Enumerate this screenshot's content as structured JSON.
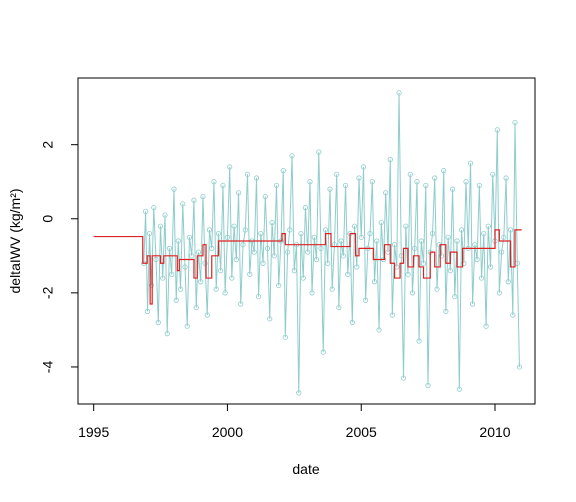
{
  "chart_data": {
    "type": "line",
    "title": "",
    "xlabel": "date",
    "ylabel": "deltaIWV (kg/m²)",
    "xlim": [
      "1994-06-01",
      "2011-07-01"
    ],
    "ylim": [
      -5.0,
      3.8
    ],
    "x_ticks": [
      {
        "value": "1995-01-01",
        "label": "1995"
      },
      {
        "value": "2000-01-01",
        "label": "2000"
      },
      {
        "value": "2005-01-01",
        "label": "2005"
      },
      {
        "value": "2010-01-01",
        "label": "2010"
      }
    ],
    "y_ticks": [
      {
        "value": -4,
        "label": "-4"
      },
      {
        "value": -2,
        "label": "-2"
      },
      {
        "value": 0,
        "label": "0"
      },
      {
        "value": 2,
        "label": "2"
      }
    ],
    "colors": {
      "raw_series": "#8fcccc",
      "segment_series": "#dd2222",
      "axes": "#000000"
    },
    "series": [
      {
        "type": "line+points",
        "style": "raw",
        "x": [
          "1996-11-15",
          "1996-12-10",
          "1997-01-05",
          "1997-02-01",
          "1997-03-01",
          "1997-04-01",
          "1997-05-01",
          "1997-06-01",
          "1997-07-01",
          "1997-08-01",
          "1997-09-01",
          "1997-10-01",
          "1997-11-01",
          "1997-12-01",
          "1998-01-01",
          "1998-02-01",
          "1998-03-01",
          "1998-04-01",
          "1998-05-01",
          "1998-06-01",
          "1998-07-01",
          "1998-08-01",
          "1998-09-01",
          "1998-10-01",
          "1998-11-01",
          "1998-12-01",
          "1999-01-01",
          "1999-02-01",
          "1999-03-01",
          "1999-04-01",
          "1999-05-01",
          "1999-06-01",
          "1999-07-01",
          "1999-08-01",
          "1999-09-01",
          "1999-10-01",
          "1999-11-01",
          "1999-12-01",
          "2000-01-01",
          "2000-02-01",
          "2000-03-01",
          "2000-04-01",
          "2000-05-01",
          "2000-06-01",
          "2000-07-01",
          "2000-08-01",
          "2000-09-01",
          "2000-10-01",
          "2000-11-01",
          "2000-12-01",
          "2001-01-01",
          "2001-02-01",
          "2001-03-01",
          "2001-04-01",
          "2001-05-01",
          "2001-06-01",
          "2001-07-01",
          "2001-08-01",
          "2001-09-01",
          "2001-10-01",
          "2001-11-01",
          "2001-12-01",
          "2002-01-01",
          "2002-02-01",
          "2002-03-01",
          "2002-04-01",
          "2002-05-01",
          "2002-06-01",
          "2002-07-01",
          "2002-08-01",
          "2002-09-01",
          "2002-10-01",
          "2002-11-01",
          "2002-12-01",
          "2003-01-01",
          "2003-02-01",
          "2003-03-01",
          "2003-04-01",
          "2003-05-01",
          "2003-06-01",
          "2003-07-01",
          "2003-08-01",
          "2003-09-01",
          "2003-10-01",
          "2003-11-01",
          "2003-12-01",
          "2004-01-01",
          "2004-02-01",
          "2004-03-01",
          "2004-04-01",
          "2004-05-01",
          "2004-06-01",
          "2004-07-01",
          "2004-08-01",
          "2004-09-01",
          "2004-10-01",
          "2004-11-01",
          "2004-12-01",
          "2005-01-01",
          "2005-02-01",
          "2005-03-01",
          "2005-04-01",
          "2005-05-01",
          "2005-06-01",
          "2005-07-01",
          "2005-08-01",
          "2005-09-01",
          "2005-10-01",
          "2005-11-01",
          "2005-12-01",
          "2006-01-01",
          "2006-02-01",
          "2006-03-01",
          "2006-04-01",
          "2006-05-01",
          "2006-06-01",
          "2006-07-01",
          "2006-08-01",
          "2006-09-01",
          "2006-10-01",
          "2006-11-01",
          "2006-12-01",
          "2007-01-01",
          "2007-02-01",
          "2007-03-01",
          "2007-04-01",
          "2007-05-01",
          "2007-06-01",
          "2007-07-01",
          "2007-08-01",
          "2007-09-01",
          "2007-10-01",
          "2007-11-01",
          "2007-12-01",
          "2008-01-01",
          "2008-02-01",
          "2008-03-01",
          "2008-04-01",
          "2008-05-01",
          "2008-06-01",
          "2008-07-01",
          "2008-08-01",
          "2008-09-01",
          "2008-10-01",
          "2008-11-01",
          "2008-12-01",
          "2009-01-01",
          "2009-02-01",
          "2009-03-01",
          "2009-04-01",
          "2009-05-01",
          "2009-06-01",
          "2009-07-01",
          "2009-08-01",
          "2009-09-01",
          "2009-10-01",
          "2009-11-01",
          "2009-12-01",
          "2010-01-01",
          "2010-02-01",
          "2010-03-01",
          "2010-04-01",
          "2010-05-01",
          "2010-06-01",
          "2010-07-01",
          "2010-08-01",
          "2010-09-01",
          "2010-10-01",
          "2010-11-01",
          "2010-12-01"
        ],
        "y": [
          -1.2,
          0.2,
          -2.5,
          -0.4,
          -1.8,
          0.3,
          -1.1,
          -2.8,
          -0.2,
          -1.6,
          0.1,
          -3.1,
          -0.8,
          -1.5,
          0.8,
          -2.2,
          -0.6,
          -1.9,
          0.4,
          -1.3,
          -2.9,
          -0.5,
          -1.0,
          0.5,
          -2.4,
          -0.9,
          -1.7,
          0.6,
          -1.2,
          -2.6,
          -0.3,
          -0.8,
          1.0,
          -1.9,
          -0.4,
          -1.4,
          0.9,
          -2.0,
          -0.5,
          1.4,
          -1.6,
          -0.2,
          -1.1,
          0.7,
          -2.3,
          -0.7,
          -0.3,
          1.2,
          -1.5,
          -0.6,
          -0.9,
          1.1,
          -2.1,
          -0.4,
          -1.2,
          0.6,
          -0.8,
          -2.7,
          -0.1,
          -1.0,
          0.9,
          -1.8,
          -0.6,
          1.3,
          -3.2,
          -0.9,
          -0.3,
          1.7,
          -1.4,
          -0.7,
          -4.7,
          -0.4,
          -1.6,
          0.3,
          -0.9,
          1.0,
          -2.0,
          -0.5,
          -1.1,
          1.8,
          -0.8,
          -3.6,
          -0.3,
          -1.2,
          0.8,
          -1.9,
          -0.7,
          1.2,
          -2.4,
          -0.6,
          -1.0,
          0.9,
          -1.5,
          -0.4,
          -2.8,
          -0.2,
          -1.3,
          1.1,
          -0.5,
          1.4,
          -2.2,
          -0.8,
          -0.4,
          1.0,
          -1.7,
          -0.6,
          -3.0,
          -0.1,
          -1.1,
          0.7,
          -0.9,
          1.6,
          -2.6,
          -0.7,
          -1.3,
          3.4,
          -1.0,
          -4.3,
          -0.2,
          -1.5,
          1.2,
          -2.0,
          -0.8,
          1.0,
          -3.3,
          -0.6,
          -1.2,
          0.9,
          -4.5,
          -0.9,
          -0.4,
          1.1,
          -1.9,
          -0.7,
          -1.0,
          1.3,
          -2.5,
          -0.5,
          -1.4,
          0.8,
          -2.1,
          -0.6,
          -4.6,
          -0.3,
          -1.2,
          1.0,
          -0.8,
          1.5,
          -2.3,
          -0.7,
          -1.1,
          0.9,
          -1.6,
          -0.4,
          -2.9,
          -0.2,
          -1.3,
          1.2,
          -0.6,
          2.4,
          -2.0,
          -0.9,
          -0.5,
          1.1,
          -1.7,
          -0.3,
          -2.6,
          2.6,
          -1.2,
          -4.0
        ]
      },
      {
        "type": "step",
        "style": "segments",
        "x": [
          "1995-01-01",
          "1996-11-01",
          "1997-01-01",
          "1997-02-10",
          "1997-03-10",
          "1997-04-15",
          "1997-06-01",
          "1997-07-01",
          "1997-08-15",
          "1997-10-01",
          "1998-01-01",
          "1998-02-15",
          "1998-03-15",
          "1998-06-01",
          "1998-10-01",
          "1998-11-15",
          "1999-01-01",
          "1999-02-01",
          "1999-03-15",
          "1999-06-01",
          "1999-09-01",
          "1999-11-15",
          "2000-01-01",
          "2000-03-01",
          "2000-07-01",
          "2001-01-01",
          "2001-07-01",
          "2001-12-01",
          "2002-01-15",
          "2002-03-01",
          "2002-05-01",
          "2002-09-01",
          "2002-12-15",
          "2003-03-01",
          "2003-06-01",
          "2003-09-01",
          "2003-11-15",
          "2004-02-01",
          "2004-05-01",
          "2004-08-01",
          "2004-10-15",
          "2004-12-01",
          "2005-02-01",
          "2005-04-01",
          "2005-06-15",
          "2005-09-01",
          "2005-11-15",
          "2006-02-01",
          "2006-04-01",
          "2006-06-15",
          "2006-08-01",
          "2006-10-01",
          "2006-12-15",
          "2007-03-01",
          "2007-05-01",
          "2007-08-01",
          "2007-10-01",
          "2007-12-15",
          "2008-03-01",
          "2008-05-01",
          "2008-08-01",
          "2008-10-15",
          "2009-01-01",
          "2009-04-01",
          "2009-07-01",
          "2009-10-01",
          "2010-01-01",
          "2010-03-01",
          "2010-05-01",
          "2010-08-01",
          "2010-10-01",
          "2010-12-01",
          "2011-01-01"
        ],
        "y": [
          -0.48,
          -1.2,
          -1.0,
          -2.3,
          -1.0,
          -1.0,
          -1.0,
          -1.2,
          -1.0,
          -1.0,
          -1.0,
          -1.4,
          -1.1,
          -1.1,
          -1.6,
          -1.0,
          -1.0,
          -0.7,
          -1.6,
          -1.0,
          -0.6,
          -0.6,
          -0.6,
          -0.6,
          -0.6,
          -0.6,
          -0.6,
          -0.6,
          -0.4,
          -0.7,
          -0.7,
          -0.7,
          -0.7,
          -0.7,
          -0.7,
          -0.4,
          -0.75,
          -0.75,
          -0.75,
          -0.4,
          -1.0,
          -0.8,
          -0.8,
          -0.8,
          -1.1,
          -1.1,
          -0.7,
          -1.2,
          -1.6,
          -1.2,
          -0.8,
          -1.3,
          -1.0,
          -1.3,
          -1.6,
          -0.9,
          -1.3,
          -0.7,
          -1.2,
          -0.9,
          -1.3,
          -0.8,
          -0.8,
          -0.8,
          -0.8,
          -0.8,
          -0.3,
          -0.6,
          -0.6,
          -1.3,
          -0.3,
          -0.3,
          -0.3
        ]
      }
    ]
  }
}
